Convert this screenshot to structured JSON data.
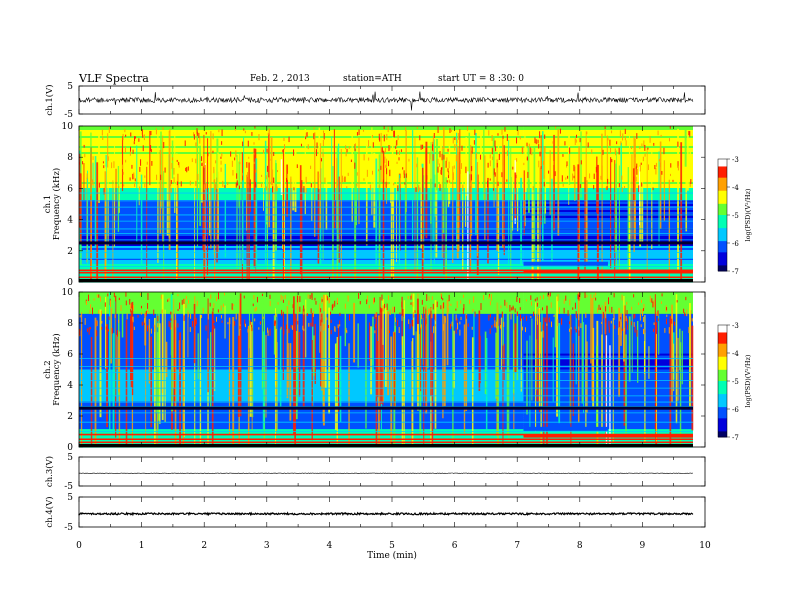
{
  "header": {
    "title": "VLF Spectra",
    "date": "Feb. 2 , 2013",
    "station": "station=ATH",
    "start": "start UT = 8 :30: 0"
  },
  "colors": {
    "colormap": [
      "#000064",
      "#0000dc",
      "#0050ff",
      "#00c8ff",
      "#00ffb4",
      "#64ff32",
      "#ffff00",
      "#ffa000",
      "#ff1e00",
      "#ffffff"
    ]
  },
  "chart_data": [
    {
      "type": "line",
      "panel": "ch1-waveform",
      "ylabel": "ch.1(V)",
      "ylim": [
        -5,
        5
      ],
      "yticks": [
        "5",
        "-5"
      ],
      "baseline": 0,
      "xlim": [
        0,
        10
      ]
    },
    {
      "type": "heatmap",
      "panel": "ch1-spectrogram",
      "ylabel": "ch.1\nFrequency (kHz)",
      "ylim": [
        0,
        10
      ],
      "yticks": [
        "0",
        "2",
        "4",
        "6",
        "8",
        "10"
      ],
      "xlim": [
        0,
        9.82
      ],
      "colorbar": {
        "label": "log(PSD)(V²/Hz)",
        "range": [
          -7,
          -3
        ],
        "ticks": [
          "-3",
          "-4",
          "-5",
          "-6",
          "-7"
        ]
      },
      "regime_change_min": 7.1
    },
    {
      "type": "heatmap",
      "panel": "ch2-spectrogram",
      "ylabel": "ch.2\nFrequency (kHz)",
      "ylim": [
        0,
        10
      ],
      "yticks": [
        "0",
        "2",
        "4",
        "6",
        "8",
        "10"
      ],
      "xlim": [
        0,
        9.82
      ],
      "colorbar": {
        "label": "log(PSD)(V²/Hz)",
        "range": [
          -7,
          -3
        ],
        "ticks": [
          "-3",
          "-4",
          "-5",
          "-6",
          "-7"
        ]
      },
      "regime_change_min": 7.1
    },
    {
      "type": "line",
      "panel": "ch3-waveform",
      "ylabel": "ch.3(V)",
      "ylim": [
        -5,
        5
      ],
      "yticks": [
        "5",
        "-5"
      ],
      "baseline": -0.6,
      "xlim": [
        0,
        10
      ]
    },
    {
      "type": "line",
      "panel": "ch4-waveform",
      "ylabel": "ch.4(V)",
      "ylim": [
        -5,
        5
      ],
      "yticks": [
        "5",
        "-5"
      ],
      "baseline": -0.6,
      "xlim": [
        0,
        10
      ]
    }
  ],
  "xaxis": {
    "label": "Time (min)",
    "range": [
      0,
      10
    ],
    "ticks": [
      "0",
      "1",
      "2",
      "3",
      "4",
      "5",
      "6",
      "7",
      "8",
      "9",
      "10"
    ]
  }
}
